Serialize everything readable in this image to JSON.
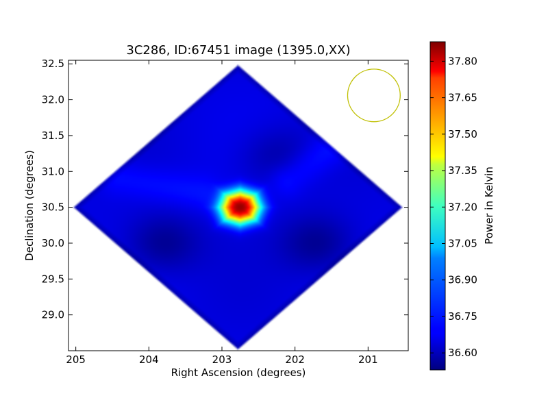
{
  "chart_data": {
    "type": "heatmap",
    "title": "3C286, ID:67451 image (1395.0,XX)",
    "xlabel": "Right Ascension (degrees)",
    "ylabel": "Declination (degrees)",
    "xlim": [
      205.1,
      200.45
    ],
    "ylim": [
      28.5,
      32.55
    ],
    "x_ticks": [
      205,
      204,
      203,
      202,
      201
    ],
    "x_tick_labels": [
      "205",
      "204",
      "203",
      "202",
      "201"
    ],
    "y_ticks": [
      29.0,
      29.5,
      30.0,
      30.5,
      31.0,
      31.5,
      32.0,
      32.5
    ],
    "y_tick_labels": [
      "29.0",
      "29.5",
      "30.0",
      "30.5",
      "31.0",
      "31.5",
      "32.0",
      "32.5"
    ],
    "colorbar": {
      "label": "Power in Kelvin",
      "range": [
        36.53,
        37.88
      ],
      "ticks": [
        36.6,
        36.75,
        36.9,
        37.05,
        37.2,
        37.35,
        37.5,
        37.65,
        37.8
      ],
      "tick_labels": [
        "36.60",
        "36.75",
        "36.90",
        "37.05",
        "37.20",
        "37.35",
        "37.50",
        "37.65",
        "37.80"
      ],
      "colormap": "jet"
    },
    "grid": false,
    "field": {
      "shape": "diamond",
      "center": [
        202.78,
        30.5
      ],
      "half_width_ra": 2.27,
      "half_height_dec": 2.0,
      "background_level": 36.66
    },
    "source": {
      "name": "3C286",
      "center": [
        202.75,
        30.5
      ],
      "peak": 37.85,
      "half_width_ra": 0.45,
      "half_height_dec": 0.38
    },
    "features": [
      {
        "type": "minimum",
        "center": [
          203.8,
          30.0
        ],
        "value": 36.55
      },
      {
        "type": "minimum",
        "center": [
          201.7,
          30.0
        ],
        "value": 36.55
      },
      {
        "type": "minimum",
        "center": [
          202.25,
          31.2
        ],
        "value": 36.58
      },
      {
        "type": "ridge",
        "from": [
          202.1,
          30.9
        ],
        "to": [
          200.85,
          31.8
        ],
        "value": 36.74
      },
      {
        "type": "ridge",
        "from": [
          203.3,
          30.7
        ],
        "to": [
          204.4,
          30.9
        ],
        "value": 36.72
      }
    ],
    "beam": {
      "center_ra": 200.92,
      "center_dec": 32.06,
      "radius_deg": 0.36,
      "color": "#bfbf00"
    }
  }
}
